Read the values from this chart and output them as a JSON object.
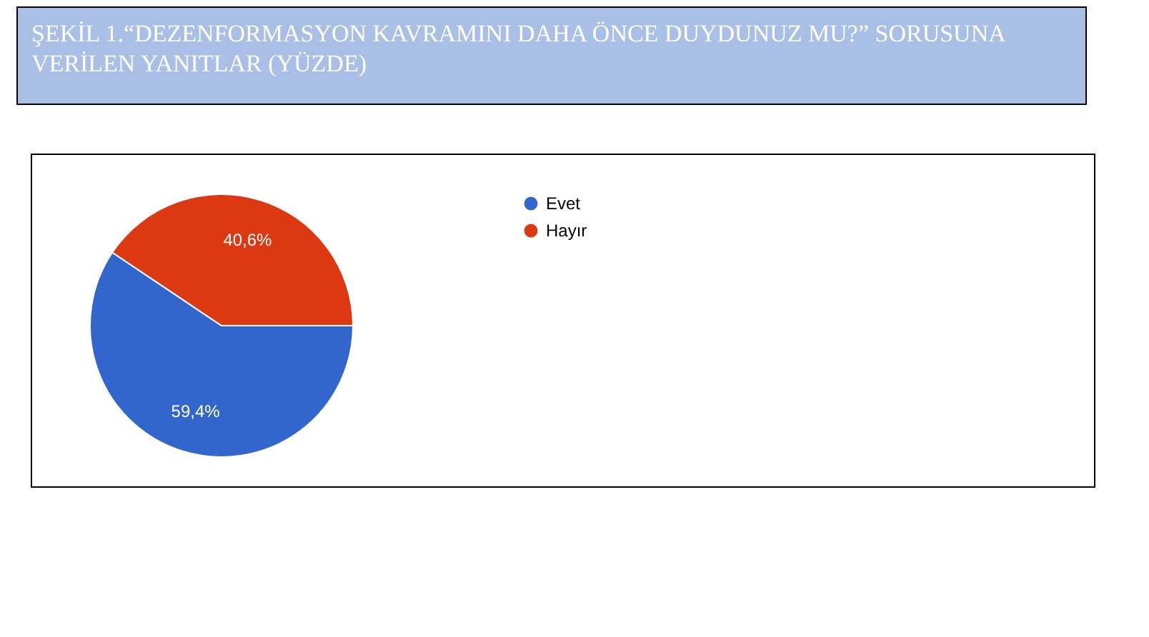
{
  "chart_data": {
    "type": "pie",
    "title": "ŞEKİL 1.“DEZENFORMASYON KAVRAMINI DAHA ÖNCE DUYDUNUZ MU?” SORUSUNA VERİLEN YANITLAR (YÜZDE)",
    "categories": [
      "Evet",
      "Hayır"
    ],
    "values": [
      59.4,
      40.6
    ],
    "colors": [
      "#3366cc",
      "#dc3912"
    ],
    "value_labels": [
      "59,4%",
      "40,6%"
    ],
    "legend": "top"
  }
}
